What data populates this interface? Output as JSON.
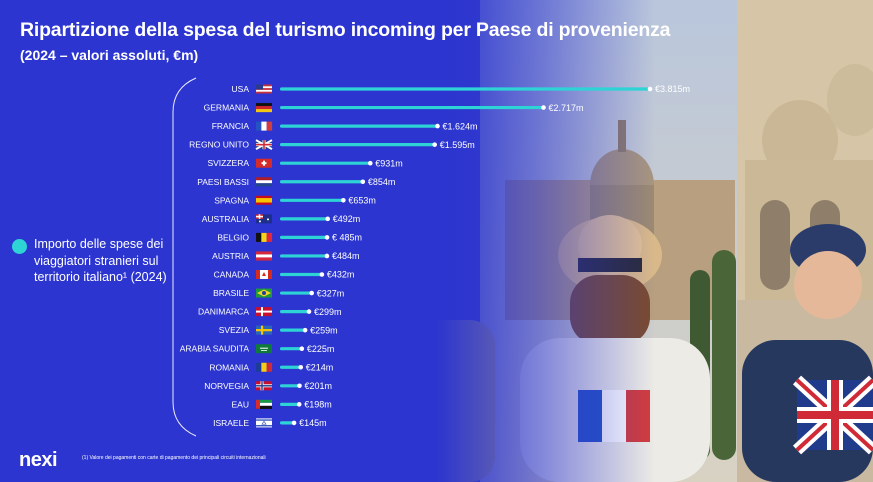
{
  "header": {
    "title": "Ripartizione della spesa del turismo incoming per Paese di provenienza",
    "subtitle": "(2024 – valori assoluti, €m)"
  },
  "legend": {
    "text": "Importo delle spese dei viaggiatori stranieri sul territorio italiano¹ (2024)"
  },
  "footnote": "(1) Valore dei pagamenti con carte di pagamento dei principali circuiti internazionali",
  "logo": "nexi",
  "colors": {
    "background": "#2a31c9",
    "bar": "#2ed3d6",
    "text": "#ffffff"
  },
  "chart_data": {
    "type": "bar",
    "orientation": "horizontal",
    "categories": [
      "USA",
      "GERMANIA",
      "FRANCIA",
      "REGNO UNITO",
      "SVIZZERA",
      "PAESI BASSI",
      "SPAGNA",
      "AUSTRALIA",
      "BELGIO",
      "AUSTRIA",
      "CANADA",
      "BRASILE",
      "DANIMARCA",
      "SVEZIA",
      "ARABIA SAUDITA",
      "ROMANIA",
      "NORVEGIA",
      "EAU",
      "ISRAELE"
    ],
    "values": [
      3815,
      2717,
      1624,
      1595,
      931,
      854,
      653,
      492,
      485,
      484,
      432,
      327,
      299,
      259,
      225,
      214,
      201,
      198,
      145
    ],
    "value_labels": [
      "€3.815m",
      "€2.717m",
      "€1.624m",
      "€1.595m",
      "€931m",
      "€854m",
      "€653m",
      "€492m",
      "€ 485m",
      "€484m",
      "€432m",
      "€327m",
      "€299m",
      "€259m",
      "€225m",
      "€214m",
      "€201m",
      "€198m",
      "€145m"
    ],
    "flags": [
      "us",
      "de",
      "fr",
      "gb",
      "ch",
      "nl",
      "es",
      "au",
      "be",
      "at",
      "ca",
      "br",
      "dk",
      "se",
      "sa",
      "ro",
      "no",
      "ae",
      "il"
    ],
    "xlim": [
      0,
      3815
    ],
    "unit": "€m",
    "grid": false
  }
}
